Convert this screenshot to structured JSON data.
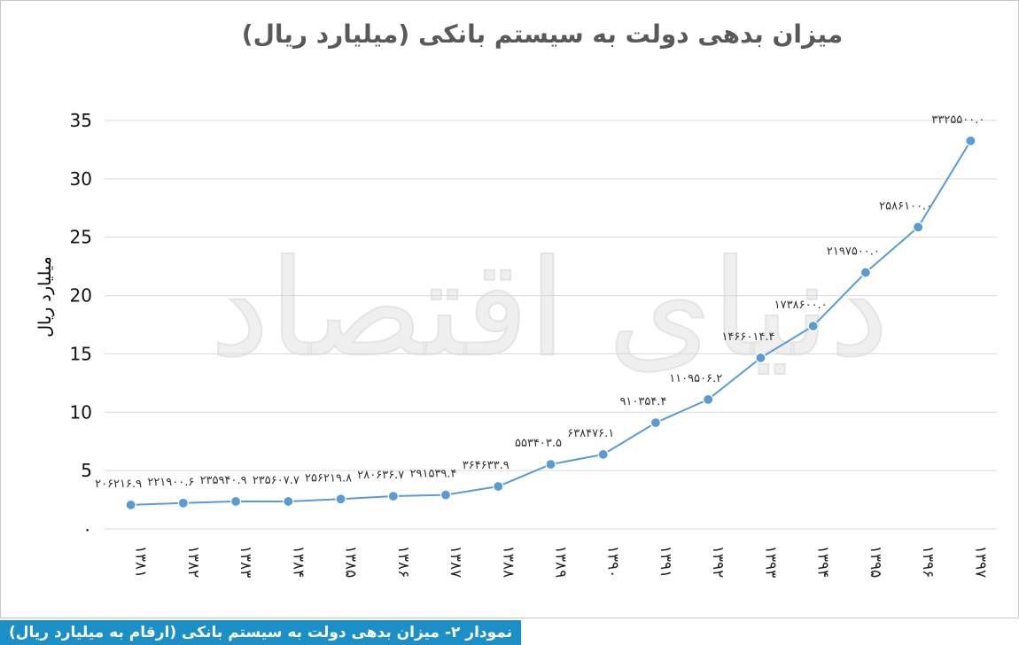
{
  "chart_data": {
    "type": "line",
    "title": "میزان بدهی دولت به سیستم بانکی (میلیارد ریال)",
    "ylabel": "میلیارد ریال",
    "xlabel": "",
    "ylim": [
      0,
      35
    ],
    "y_ticks": [
      "۰",
      "5",
      "10",
      "15",
      "20",
      "25",
      "30",
      "35"
    ],
    "grid": true,
    "categories": [
      "۱۳۸۱",
      "۱۳۸۲",
      "۱۳۸۳",
      "۱۳۸۴",
      "۱۳۸۵",
      "۱۳۸۶",
      "۱۳۸۷",
      "۱۳۸۸",
      "۱۳۸۹",
      "۱۳۹۰",
      "۱۳۹۱",
      "۱۳۹۲",
      "۱۳۹۳",
      "۱۳۹۴",
      "۱۳۹۵",
      "۱۳۹۶",
      "۱۳۹۷"
    ],
    "values": [
      2.0622,
      2.219,
      2.3594,
      2.3561,
      2.5622,
      2.8064,
      2.9154,
      3.6463,
      5.534,
      6.3848,
      9.1035,
      11.0951,
      14.6601,
      17.3861,
      21.975,
      25.861,
      33.255
    ],
    "data_labels": [
      "۲۰۶۲۱۶.۹",
      "۲۲۱۹۰۰.۶",
      "۲۳۵۹۴۰.۹",
      "۲۳۵۶۰۷.۷",
      "۲۵۶۲۱۹.۸",
      "۲۸۰۶۳۶.۷",
      "۲۹۱۵۳۹.۴",
      "۳۶۴۶۳۳.۹",
      "۵۵۳۴۰۳.۵",
      "۶۳۸۴۷۶.۱",
      "۹۱۰۳۵۴.۴",
      "۱۱۰۹۵۰۶.۲",
      "۱۴۶۶۰۱۴.۴",
      "۱۷۳۸۶۰۰.۰",
      "۲۱۹۷۵۰۰.۰",
      "۲۵۸۶۱۰۰.۰",
      "۳۳۲۵۵۰۰.۰"
    ],
    "line_color": "#5b9bd5",
    "marker_color": "#5b9bd5"
  },
  "watermark": "دنیای اقتصاد",
  "caption": "نمودار ۲- میزان بدهی دولت به سیستم بانکی (ارقام به میلیارد ریال)",
  "colors": {
    "caption_bg": "#1c8fc7",
    "grid": "#d9d9d9"
  }
}
